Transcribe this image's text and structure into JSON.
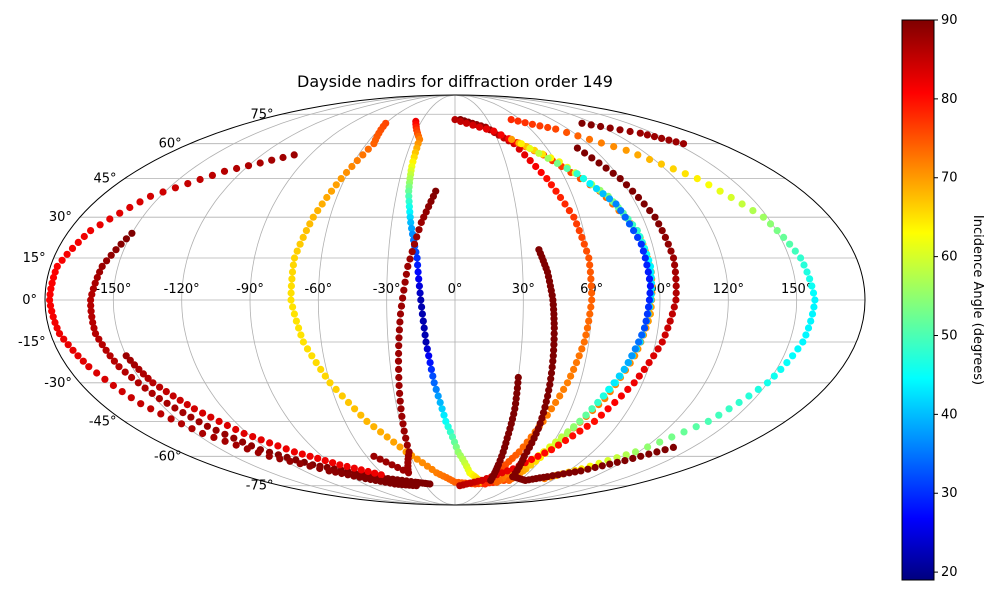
{
  "chart_data": {
    "type": "scatter",
    "projection": "mollweide",
    "title": "Dayside nadirs for diffraction order 149",
    "grid": true,
    "lon_ticks": [
      "-150°",
      "-120°",
      "-90°",
      "-60°",
      "-30°",
      "0°",
      "30°",
      "60°",
      "90°",
      "120°",
      "150°"
    ],
    "lon_tick_values": [
      -150,
      -120,
      -90,
      -60,
      -30,
      0,
      30,
      60,
      90,
      120,
      150
    ],
    "lat_ticks_left": [
      "75°",
      "60°",
      "45°",
      "30°",
      "15°",
      "0°",
      "-15°",
      "-30°",
      "-45°",
      "-60°",
      "-75°"
    ],
    "lat_tick_values": [
      75,
      60,
      45,
      30,
      15,
      0,
      -15,
      -30,
      -45,
      -60,
      -75
    ],
    "colorbar": {
      "label": "Incidence Angle (degrees)",
      "colormap": "jet",
      "range": [
        19,
        90
      ],
      "ticks": [
        "20",
        "30",
        "40",
        "50",
        "60",
        "70",
        "80",
        "90"
      ],
      "tick_values": [
        20,
        30,
        40,
        50,
        60,
        70,
        80,
        90
      ]
    },
    "tracks": [
      {
        "note": "",
        "points": [
          [
            -150,
            24,
            90
          ],
          [
            -157,
            12,
            88
          ],
          [
            -160,
            0,
            86
          ],
          [
            -160,
            -12,
            86
          ],
          [
            -156,
            -24,
            86
          ],
          [
            -148,
            -36,
            87
          ],
          [
            -138,
            -47,
            88
          ],
          [
            -125,
            -57,
            89
          ],
          [
            -105,
            -64,
            90
          ],
          [
            -82,
            -68,
            90
          ],
          [
            -60,
            -71,
            90
          ],
          [
            -38,
            -73,
            90
          ],
          [
            -25,
            -74,
            90
          ]
        ]
      },
      {
        "note": "",
        "points": [
          [
            -150,
            -20,
            88
          ],
          [
            -145,
            -30,
            86
          ],
          [
            -135,
            -40,
            84
          ],
          [
            -122,
            -50,
            83
          ],
          [
            -105,
            -58,
            82
          ],
          [
            -85,
            -64,
            82
          ],
          [
            -62,
            -69,
            82
          ]
        ]
      },
      {
        "note": "",
        "points": [
          [
            -100,
            55,
            88
          ],
          [
            -130,
            48,
            86
          ],
          [
            -155,
            38,
            84
          ],
          [
            -170,
            25,
            82
          ],
          [
            -177,
            12,
            81
          ],
          [
            -178,
            0,
            81
          ],
          [
            -176,
            -12,
            82
          ],
          [
            -170,
            -24,
            83
          ],
          [
            -160,
            -38,
            85
          ],
          [
            -146,
            -50,
            87
          ],
          [
            -126,
            -60,
            88
          ],
          [
            -100,
            -67,
            89
          ],
          [
            -80,
            -71,
            90
          ],
          [
            -60,
            -74,
            90
          ],
          [
            -40,
            -75,
            90
          ]
        ]
      },
      {
        "note": "",
        "points": [
          [
            -60,
            70,
            76
          ],
          [
            -55,
            60,
            74
          ],
          [
            -62,
            45,
            70
          ],
          [
            -68,
            30,
            68
          ],
          [
            -72,
            15,
            66
          ],
          [
            -72,
            0,
            65
          ],
          [
            -68,
            -15,
            65
          ],
          [
            -60,
            -30,
            66
          ],
          [
            -48,
            -45,
            68
          ],
          [
            -32,
            -58,
            70
          ],
          [
            -15,
            -68,
            72
          ],
          [
            0,
            -73,
            74
          ],
          [
            20,
            -74,
            76
          ],
          [
            40,
            -73,
            78
          ]
        ]
      },
      {
        "note": "",
        "points": [
          [
            -35,
            71,
            82
          ],
          [
            -25,
            62,
            72
          ],
          [
            -25,
            50,
            62
          ],
          [
            -24,
            40,
            52
          ],
          [
            -21,
            28,
            40
          ],
          [
            -17,
            15,
            30
          ],
          [
            -15,
            0,
            22
          ],
          [
            -13,
            -15,
            22
          ],
          [
            -10,
            -30,
            34
          ],
          [
            -5,
            -45,
            45
          ],
          [
            2,
            -58,
            55
          ],
          [
            12,
            -68,
            62
          ],
          [
            25,
            -73,
            68
          ]
        ]
      },
      {
        "note": "",
        "points": [
          [
            -10,
            40,
            90
          ],
          [
            -16,
            28,
            88
          ],
          [
            -21,
            12,
            88
          ],
          [
            -24,
            -5,
            88
          ],
          [
            -26,
            -22,
            88
          ],
          [
            -28,
            -40,
            88
          ],
          [
            -30,
            -58,
            88
          ],
          [
            -38,
            -68,
            88
          ],
          [
            -55,
            -60,
            88
          ]
        ]
      },
      {
        "note": "",
        "points": [
          [
            5,
            72,
            90
          ],
          [
            25,
            68,
            88
          ],
          [
            40,
            60,
            84
          ],
          [
            50,
            45,
            80
          ],
          [
            57,
            30,
            77
          ],
          [
            60,
            15,
            75
          ],
          [
            60,
            0,
            74
          ],
          [
            58,
            -15,
            73
          ],
          [
            54,
            -30,
            72
          ],
          [
            48,
            -45,
            72
          ],
          [
            42,
            -58,
            74
          ],
          [
            35,
            -67,
            76
          ],
          [
            30,
            -74,
            78
          ]
        ]
      },
      {
        "note": "",
        "points": [
          [
            0,
            72,
            86
          ],
          [
            30,
            66,
            82
          ],
          [
            55,
            55,
            78
          ],
          [
            75,
            40,
            74
          ],
          [
            85,
            25,
            71
          ],
          [
            87,
            10,
            70
          ],
          [
            86,
            -5,
            70
          ],
          [
            82,
            -20,
            71
          ],
          [
            75,
            -36,
            72
          ],
          [
            65,
            -50,
            73
          ],
          [
            55,
            -62,
            74
          ],
          [
            45,
            -72,
            76
          ]
        ]
      },
      {
        "note": "",
        "points": [
          [
            40,
            62,
            70
          ],
          [
            62,
            52,
            62
          ],
          [
            78,
            38,
            54
          ],
          [
            85,
            25,
            48
          ],
          [
            87,
            12,
            44
          ],
          [
            86,
            0,
            42
          ],
          [
            83,
            -15,
            42
          ],
          [
            77,
            -30,
            46
          ],
          [
            68,
            -45,
            54
          ],
          [
            58,
            -58,
            62
          ],
          [
            48,
            -68,
            70
          ],
          [
            40,
            -73,
            74
          ]
        ]
      },
      {
        "note": "",
        "points": [
          [
            45,
            60,
            64
          ],
          [
            68,
            47,
            48
          ],
          [
            80,
            35,
            36
          ],
          [
            85,
            20,
            30
          ],
          [
            86,
            5,
            28
          ],
          [
            84,
            -10,
            32
          ],
          [
            79,
            -25,
            40
          ],
          [
            71,
            -40,
            50
          ],
          [
            62,
            -55,
            60
          ],
          [
            55,
            -66,
            68
          ],
          [
            50,
            -72,
            74
          ]
        ]
      },
      {
        "note": "",
        "points": [
          [
            80,
            58,
            90
          ],
          [
            90,
            45,
            90
          ],
          [
            96,
            30,
            90
          ],
          [
            98,
            15,
            88
          ],
          [
            97,
            0,
            86
          ],
          [
            93,
            -15,
            84
          ],
          [
            86,
            -30,
            82
          ],
          [
            76,
            -45,
            80
          ],
          [
            62,
            -57,
            80
          ],
          [
            45,
            -66,
            82
          ],
          [
            25,
            -72,
            84
          ],
          [
            5,
            -75,
            86
          ]
        ]
      },
      {
        "note": "",
        "points": [
          [
            52,
            72,
            78
          ],
          [
            80,
            67,
            76
          ],
          [
            110,
            57,
            70
          ],
          [
            132,
            45,
            64
          ],
          [
            148,
            30,
            56
          ],
          [
            155,
            15,
            48
          ],
          [
            158,
            0,
            44
          ],
          [
            156,
            -15,
            44
          ],
          [
            150,
            -30,
            46
          ],
          [
            138,
            -45,
            50
          ],
          [
            118,
            -58,
            56
          ],
          [
            98,
            -66,
            64
          ],
          [
            80,
            -71,
            72
          ]
        ]
      },
      {
        "note": "",
        "points": [
          [
            110,
            70,
            90
          ],
          [
            140,
            65,
            88
          ],
          [
            155,
            60,
            88
          ]
        ]
      },
      {
        "note": "",
        "points": [
          [
            38,
            18,
            90
          ],
          [
            41,
            10,
            90
          ],
          [
            43,
            0,
            90
          ],
          [
            44,
            -10,
            90
          ],
          [
            45,
            -22,
            90
          ],
          [
            46,
            -35,
            90
          ],
          [
            47,
            -48,
            90
          ],
          [
            47,
            -60,
            90
          ],
          [
            50,
            -70,
            90
          ],
          [
            65,
            -72,
            90
          ],
          [
            80,
            -70,
            90
          ],
          [
            100,
            -67,
            90
          ],
          [
            120,
            -62,
            90
          ],
          [
            138,
            -56,
            90
          ]
        ]
      },
      {
        "note": "",
        "points": [
          [
            30,
            -28,
            90
          ],
          [
            31,
            -40,
            90
          ],
          [
            31,
            -52,
            90
          ],
          [
            32,
            -64,
            90
          ],
          [
            33,
            -72,
            90
          ]
        ]
      }
    ]
  }
}
